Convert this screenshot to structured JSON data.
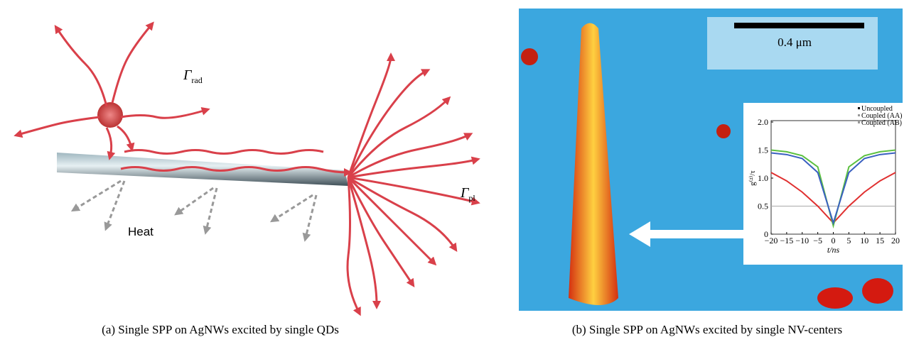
{
  "panel_a": {
    "caption": "(a) Single SPP on AgNWs excited by single QDs",
    "gamma_rad": {
      "symbol": "Γ",
      "sub": "rad"
    },
    "gamma_pl": {
      "symbol": "Γ",
      "sub": "pl"
    },
    "heat": "Heat"
  },
  "panel_b": {
    "caption": "(b) Single SPP on AgNWs excited by single NV-centers",
    "scale_bar": "0.4 μm",
    "inset_chart": {
      "type": "line",
      "xlabel": "t/ns",
      "ylabel": "g⁽²⁾/τ",
      "x": [
        -20,
        -15,
        -10,
        -5,
        0,
        5,
        10,
        15,
        20
      ],
      "series": [
        {
          "name": "Uncoupled",
          "color": "#e03030",
          "values": [
            1.1,
            0.95,
            0.75,
            0.5,
            0.2,
            0.5,
            0.75,
            0.95,
            1.1
          ]
        },
        {
          "name": "Coupled (AA)",
          "color": "#5cc040",
          "values": [
            1.5,
            1.47,
            1.4,
            1.2,
            0.15,
            1.2,
            1.4,
            1.47,
            1.5
          ]
        },
        {
          "name": "Coupled (AB)",
          "color": "#3a60c0",
          "values": [
            1.45,
            1.42,
            1.35,
            1.1,
            0.2,
            1.1,
            1.35,
            1.42,
            1.45
          ]
        }
      ],
      "xlim": [
        -20,
        20
      ],
      "ylim": [
        0,
        2
      ],
      "xticks": [
        {
          "value": -20,
          "label": "−20"
        },
        {
          "value": -15,
          "label": "−15"
        },
        {
          "value": -10,
          "label": "−10"
        },
        {
          "value": -5,
          "label": "−5"
        },
        0,
        5,
        10,
        15,
        20
      ],
      "yticks": [
        0,
        {
          "value": 0.5,
          "label": "0.5"
        },
        {
          "value": 1,
          "label": "1.0"
        },
        {
          "value": 1.5,
          "label": "1.5"
        },
        {
          "value": 2,
          "label": "2.0"
        }
      ]
    }
  }
}
